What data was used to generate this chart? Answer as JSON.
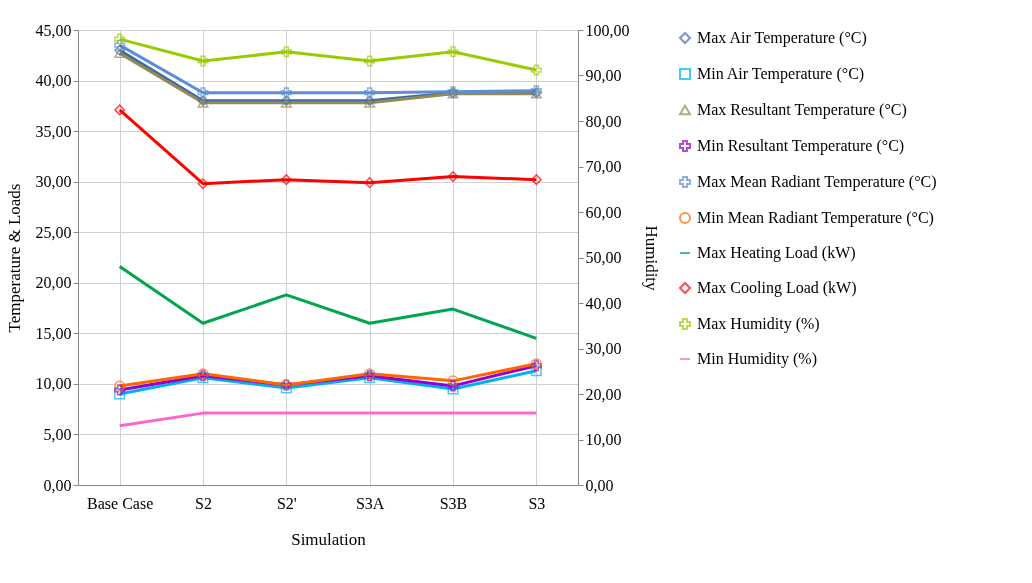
{
  "chart_data": {
    "type": "line",
    "xlabel": "Simulation",
    "ylabel": "Temperature  &  Loads",
    "y2label": "Humidity",
    "categories": [
      "Base Case",
      "S2",
      "S2'",
      "S3A",
      "S3B",
      "S3"
    ],
    "ylim": [
      0,
      45
    ],
    "yticks": [
      {
        "value": 0,
        "label": "0,00"
      },
      {
        "value": 5,
        "label": "5,00"
      },
      {
        "value": 10,
        "label": "10,00"
      },
      {
        "value": 15,
        "label": "15,00"
      },
      {
        "value": 20,
        "label": "20,00"
      },
      {
        "value": 25,
        "label": "25,00"
      },
      {
        "value": 30,
        "label": "30,00"
      },
      {
        "value": 35,
        "label": "35,00"
      },
      {
        "value": 40,
        "label": "40,00"
      },
      {
        "value": 45,
        "label": "45,00"
      }
    ],
    "y2lim": [
      0,
      100
    ],
    "y2ticks": [
      {
        "value": 0,
        "label": "0,00"
      },
      {
        "value": 10,
        "label": "10,00"
      },
      {
        "value": 20,
        "label": "20,00"
      },
      {
        "value": 30,
        "label": "30,00"
      },
      {
        "value": 40,
        "label": "40,00"
      },
      {
        "value": 50,
        "label": "50,00"
      },
      {
        "value": 60,
        "label": "60,00"
      },
      {
        "value": 70,
        "label": "70,00"
      },
      {
        "value": 80,
        "label": "80,00"
      },
      {
        "value": 90,
        "label": "90,00"
      },
      {
        "value": 100,
        "label": "100,00"
      }
    ],
    "grid": true,
    "legend": "right",
    "line_style": "solid",
    "series": [
      {
        "name": "Max Air Temperature (°C)",
        "color": "#3f6aa8",
        "marker": "diamond",
        "values": [
          43.0,
          38.0,
          38.0,
          38.0,
          38.8,
          38.8
        ]
      },
      {
        "name": "Min Air Temperature (°C)",
        "color": "#00b0f0",
        "marker": "square",
        "values": [
          9.0,
          10.6,
          9.6,
          10.6,
          9.5,
          11.3
        ]
      },
      {
        "name": "Max Resultant Temperature (°C)",
        "color": "#948a54",
        "marker": "triangle",
        "values": [
          42.7,
          37.8,
          37.8,
          37.8,
          38.7,
          38.7
        ]
      },
      {
        "name": "Min Resultant Temperature (°C)",
        "color": "#9400d3",
        "marker": "cross",
        "values": [
          9.4,
          10.8,
          9.9,
          10.8,
          9.8,
          11.8
        ]
      },
      {
        "name": "Max Mean Radiant Temperature (°C)",
        "color": "#5b8ed6",
        "marker": "cross",
        "values": [
          43.5,
          38.8,
          38.8,
          38.8,
          38.9,
          39.0
        ]
      },
      {
        "name": "Min Mean Radiant Temperature (°C)",
        "color": "#ff6600",
        "marker": "circle",
        "values": [
          9.8,
          11.0,
          9.9,
          11.0,
          10.3,
          12.0
        ]
      },
      {
        "name": "Max Heating Load (kW)",
        "color": "#00a550",
        "marker": "none",
        "values": [
          21.6,
          16.0,
          18.8,
          16.0,
          17.4,
          14.5
        ]
      },
      {
        "name": "Max Cooling Load (kW)",
        "color": "#ff0000",
        "marker": "diamond",
        "values": [
          37.1,
          29.8,
          30.2,
          29.9,
          30.5,
          30.2
        ]
      },
      {
        "name": "Max Humidity (%)",
        "color": "#99cc00",
        "marker": "cross",
        "axis": "y2",
        "values": [
          98.0,
          93.2,
          95.2,
          93.2,
          95.2,
          91.2
        ]
      },
      {
        "name": "Min Humidity (%)",
        "color": "#ff66cc",
        "marker": "none",
        "axis": "y2",
        "values": [
          13.0,
          15.8,
          15.8,
          15.8,
          15.8,
          15.8
        ]
      }
    ]
  }
}
